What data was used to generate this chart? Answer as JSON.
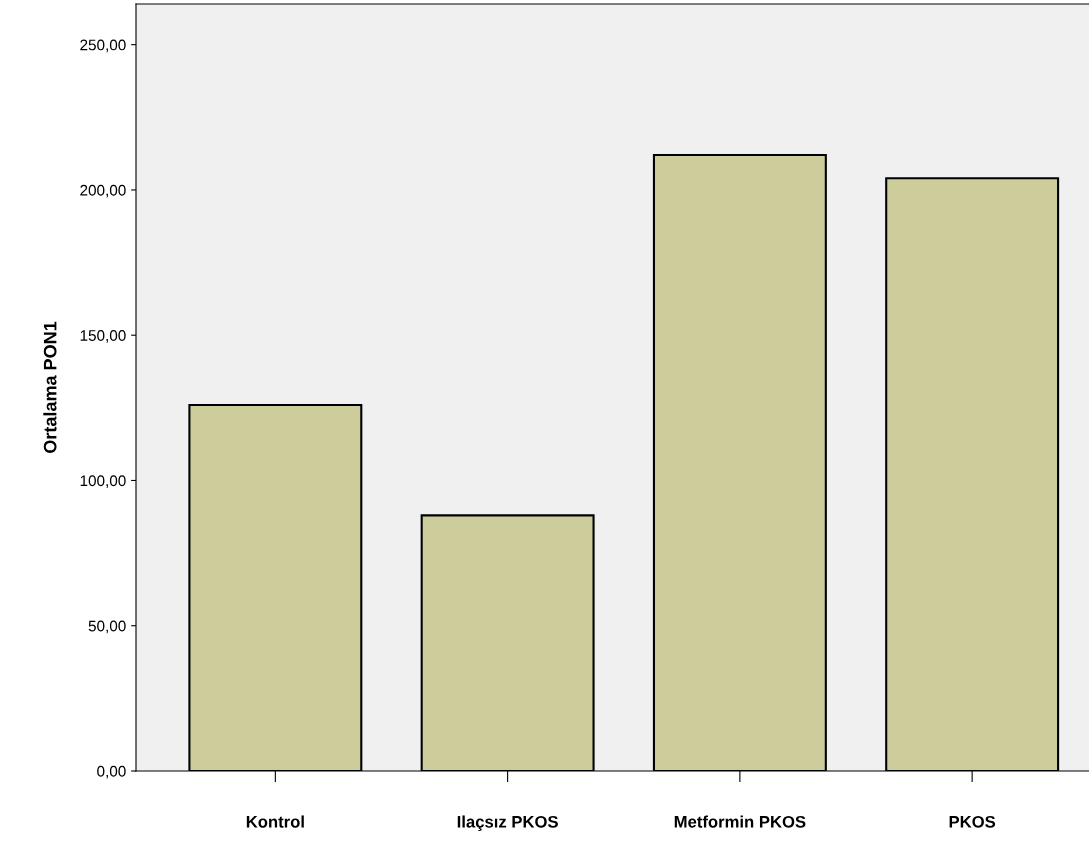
{
  "chart_data": {
    "type": "bar",
    "ylabel": "Ortalama PON1",
    "categories": [
      "Kontrol",
      "Ilaçsız PKOS",
      "Metformin PKOS",
      "PKOS"
    ],
    "values": [
      126,
      88,
      212,
      204
    ],
    "color": "#cdcd9b",
    "ylim": [
      0,
      264
    ],
    "yticks": [
      {
        "value": 0,
        "label": "0,00"
      },
      {
        "value": 50,
        "label": "50,00"
      },
      {
        "value": 100,
        "label": "100,00"
      },
      {
        "value": 150,
        "label": "150,00"
      },
      {
        "value": 200,
        "label": "200,00"
      },
      {
        "value": 250,
        "label": "250,00"
      }
    ],
    "grid": false
  }
}
